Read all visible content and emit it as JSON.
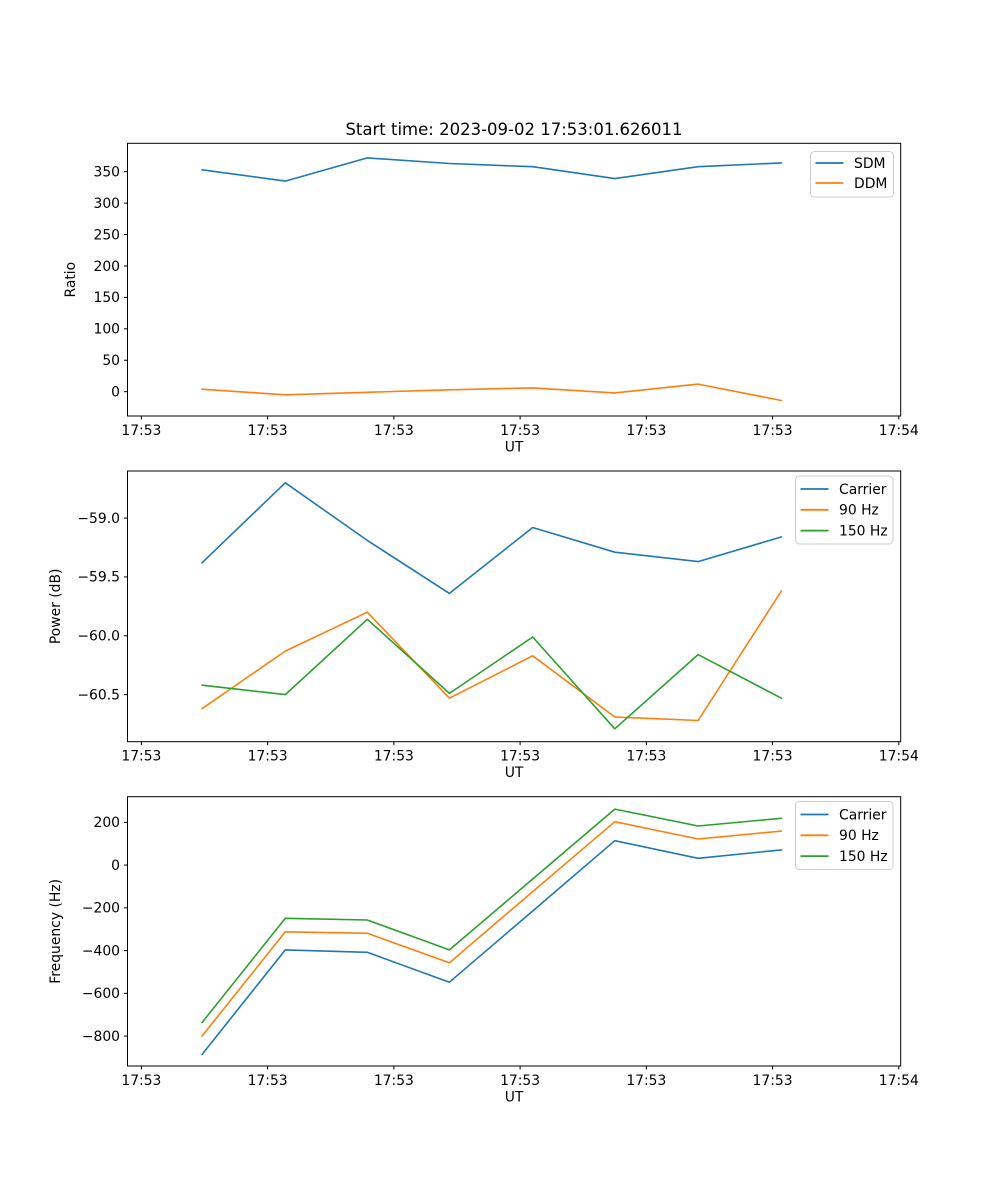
{
  "figure": {
    "background": "#ffffff",
    "axis_color": "#000000",
    "legend_border_color": "#cccccc",
    "series_colors": {
      "blue": "#1f77b4",
      "orange": "#ff7f0e",
      "green": "#2ca02c"
    }
  },
  "chart_data": [
    {
      "id": "ratio",
      "type": "line",
      "title": "Start time: 2023-09-02 17:53:01.626011",
      "xlabel": "UT",
      "ylabel": "Ratio",
      "x": [
        4.8,
        11.4,
        17.9,
        24.4,
        31.0,
        37.5,
        44.1,
        50.7
      ],
      "xlim": [
        -1.1,
        60.15
      ],
      "xticks": [
        0,
        10,
        20,
        30,
        40,
        50,
        60
      ],
      "xtick_labels": [
        "17:53",
        "17:53",
        "17:53",
        "17:53",
        "17:53",
        "17:53",
        "17:54"
      ],
      "ylim": [
        -38.7,
        395.2
      ],
      "yticks": [
        0,
        50,
        100,
        150,
        200,
        250,
        300,
        350
      ],
      "ytick_labels": [
        "0",
        "50",
        "100",
        "150",
        "200",
        "250",
        "300",
        "350"
      ],
      "grid": false,
      "legend_position": "upper right",
      "legend_entries": [
        "SDM",
        "DDM"
      ],
      "series": [
        {
          "name": "SDM",
          "color": "#1f77b4",
          "values": [
            353,
            335,
            372,
            363,
            358,
            339,
            358,
            364
          ]
        },
        {
          "name": "DDM",
          "color": "#ff7f0e",
          "values": [
            4,
            -5,
            -1,
            3,
            6,
            -2,
            12,
            -14
          ]
        }
      ]
    },
    {
      "id": "power",
      "type": "line",
      "title": "",
      "xlabel": "UT",
      "ylabel": "Power (dB)",
      "x": [
        4.8,
        11.4,
        17.9,
        24.4,
        31.0,
        37.5,
        44.1,
        50.7
      ],
      "xlim": [
        -1.1,
        60.15
      ],
      "xticks": [
        0,
        10,
        20,
        30,
        40,
        50,
        60
      ],
      "xtick_labels": [
        "17:53",
        "17:53",
        "17:53",
        "17:53",
        "17:53",
        "17:53",
        "17:54"
      ],
      "ylim": [
        -60.9,
        -58.6
      ],
      "yticks": [
        -60.5,
        -60.0,
        -59.5,
        -59.0
      ],
      "ytick_labels": [
        "−60.5",
        "−60.0",
        "−59.5",
        "−59.0"
      ],
      "grid": false,
      "legend_position": "upper right",
      "legend_entries": [
        "Carrier",
        "90 Hz",
        "150 Hz"
      ],
      "series": [
        {
          "name": "Carrier",
          "color": "#1f77b4",
          "values": [
            -59.38,
            -58.7,
            -59.19,
            -59.64,
            -59.08,
            -59.29,
            -59.37,
            -59.16
          ]
        },
        {
          "name": "90 Hz",
          "color": "#ff7f0e",
          "values": [
            -60.62,
            -60.13,
            -59.8,
            -60.53,
            -60.17,
            -60.69,
            -60.72,
            -59.62
          ]
        },
        {
          "name": "150 Hz",
          "color": "#2ca02c",
          "values": [
            -60.42,
            -60.5,
            -59.86,
            -60.49,
            -60.01,
            -60.79,
            -60.16,
            -60.53
          ]
        }
      ]
    },
    {
      "id": "frequency",
      "type": "line",
      "title": "",
      "xlabel": "UT",
      "ylabel": "Frequency (Hz)",
      "x": [
        4.8,
        11.4,
        17.9,
        24.4,
        31.0,
        37.5,
        44.1,
        50.7
      ],
      "xlim": [
        -1.1,
        60.15
      ],
      "xticks": [
        0,
        10,
        20,
        30,
        40,
        50,
        60
      ],
      "xtick_labels": [
        "17:53",
        "17:53",
        "17:53",
        "17:53",
        "17:53",
        "17:53",
        "17:54"
      ],
      "ylim": [
        -940,
        320
      ],
      "yticks": [
        -800,
        -600,
        -400,
        -200,
        0,
        200
      ],
      "ytick_labels": [
        "−800",
        "−600",
        "−400",
        "−200",
        "0",
        "200"
      ],
      "grid": false,
      "legend_position": "upper right",
      "legend_entries": [
        "Carrier",
        "90 Hz",
        "150 Hz"
      ],
      "series": [
        {
          "name": "Carrier",
          "color": "#1f77b4",
          "values": [
            -886,
            -397,
            -408,
            -548,
            -215,
            114,
            32,
            71
          ]
        },
        {
          "name": "90 Hz",
          "color": "#ff7f0e",
          "values": [
            -800,
            -312,
            -319,
            -457,
            -124,
            203,
            122,
            159
          ]
        },
        {
          "name": "150 Hz",
          "color": "#2ca02c",
          "values": [
            -737,
            -249,
            -257,
            -397,
            -65,
            262,
            183,
            219
          ]
        }
      ]
    }
  ]
}
